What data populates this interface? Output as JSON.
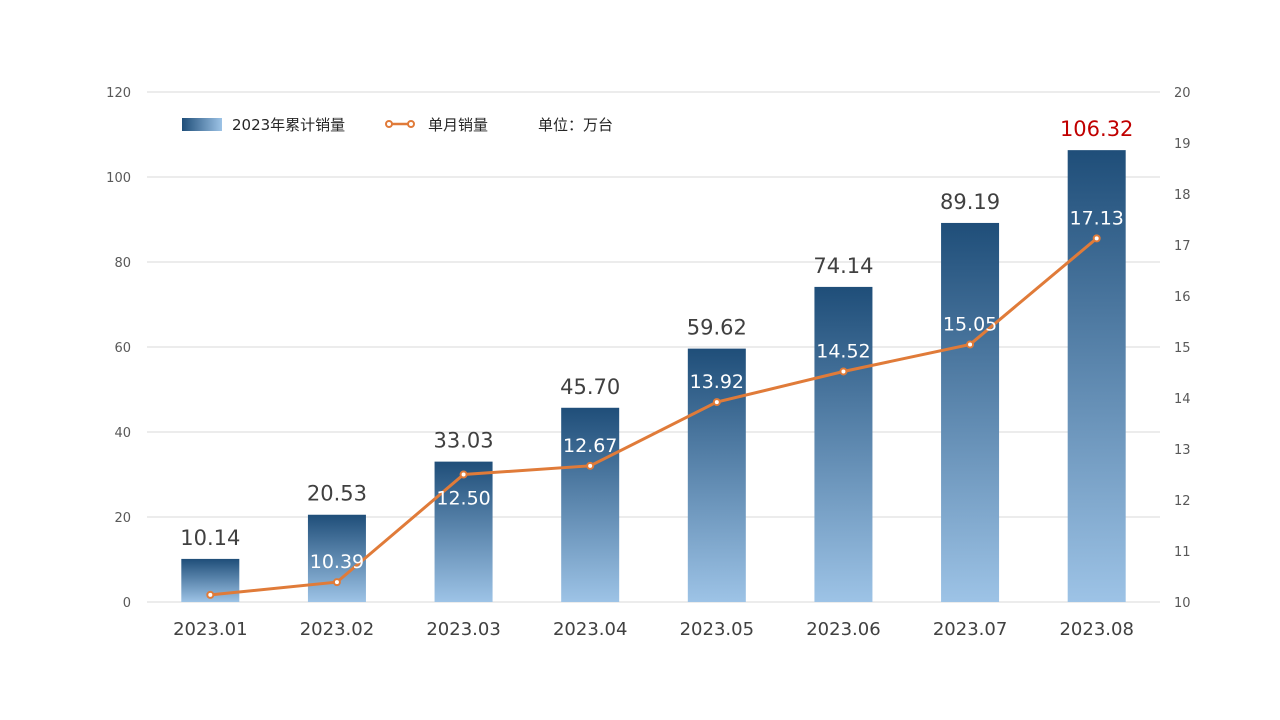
{
  "chart_data": {
    "type": "bar",
    "categories": [
      "2023.01",
      "2023.02",
      "2023.03",
      "2023.04",
      "2023.05",
      "2023.06",
      "2023.07",
      "2023.08"
    ],
    "series": [
      {
        "name": "2023年累计销量",
        "type": "bar",
        "axis": "left",
        "values": [
          10.14,
          20.53,
          33.03,
          45.7,
          59.62,
          74.14,
          89.19,
          106.32
        ],
        "labels": [
          "10.14",
          "20.53",
          "33.03",
          "45.70",
          "59.62",
          "74.14",
          "89.19",
          "106.32"
        ],
        "color_top": "#1f4e79",
        "color_bottom": "#9dc3e6"
      },
      {
        "name": "单月销量",
        "type": "line",
        "axis": "right",
        "values": [
          10.14,
          10.39,
          12.5,
          12.67,
          13.92,
          14.52,
          15.05,
          17.13
        ],
        "labels": [
          "",
          "10.39",
          "12.50",
          "12.67",
          "13.92",
          "14.52",
          "15.05",
          "17.13"
        ],
        "color": "#e07b39"
      }
    ],
    "y_left": {
      "min": 0,
      "max": 120,
      "ticks": [
        "0",
        "20",
        "40",
        "60",
        "80",
        "100",
        "120"
      ]
    },
    "y_right": {
      "min": 10,
      "max": 20,
      "ticks": [
        "10",
        "11",
        "12",
        "13",
        "14",
        "15",
        "16",
        "17",
        "18",
        "19",
        "20"
      ]
    },
    "unit_note": "单位：万台",
    "highlight_color": "#c00000",
    "grid": true,
    "legend_position": "top-left"
  }
}
